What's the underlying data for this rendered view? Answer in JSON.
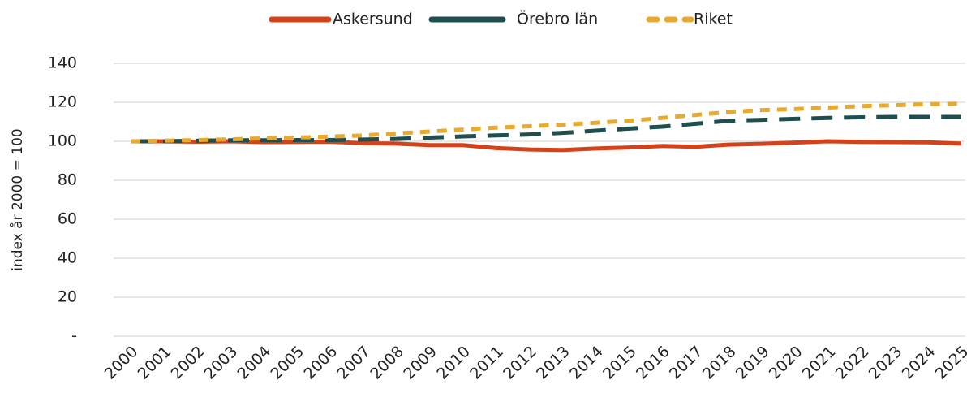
{
  "chart_data": {
    "type": "line",
    "y_label": "index år 2000 = 100",
    "x": [
      "2000",
      "2001",
      "2002",
      "2003",
      "2004",
      "2005",
      "2006",
      "2007",
      "2008",
      "2009",
      "2010",
      "2011",
      "2012",
      "2013",
      "2014",
      "2015",
      "2016",
      "2017",
      "2018",
      "2019",
      "2020",
      "2021",
      "2022",
      "2023",
      "2024",
      "2025"
    ],
    "series": [
      {
        "name": "Askersund",
        "color": "#d4421c",
        "dash": "solid",
        "values": [
          100,
          100,
          99.8,
          100,
          99.6,
          99.7,
          99.8,
          99,
          98.8,
          98,
          98,
          96.5,
          95.8,
          95.5,
          96.3,
          96.8,
          97.6,
          97.2,
          98.3,
          98.7,
          99.3,
          100,
          99.7,
          99.6,
          99.5,
          98.8
        ]
      },
      {
        "name": "Örebro län",
        "color": "#1f4e4f",
        "dash": "long",
        "values": [
          100,
          100,
          100.3,
          100.5,
          100.5,
          100.6,
          100.6,
          100.9,
          101.2,
          101.9,
          102.5,
          103,
          103.5,
          104.3,
          105.4,
          106.5,
          107.5,
          109,
          110.5,
          111,
          111.5,
          112,
          112.3,
          112.5,
          112.5,
          112.5
        ]
      },
      {
        "name": "Riket",
        "color": "#e8aa2e",
        "dash": "short",
        "values": [
          100,
          100.3,
          100.6,
          101,
          101.5,
          101.9,
          102.4,
          103,
          104,
          105,
          106,
          107,
          107.7,
          108.5,
          109.5,
          110.5,
          112,
          113.5,
          115,
          116,
          116.5,
          117.3,
          118,
          118.5,
          119,
          119.3
        ]
      }
    ],
    "ylim": [
      0,
      140
    ],
    "yticks": [
      {
        "value": 0,
        "label": "-"
      },
      20,
      40,
      60,
      80,
      100,
      120,
      140
    ],
    "grid": true,
    "legend": "top"
  }
}
